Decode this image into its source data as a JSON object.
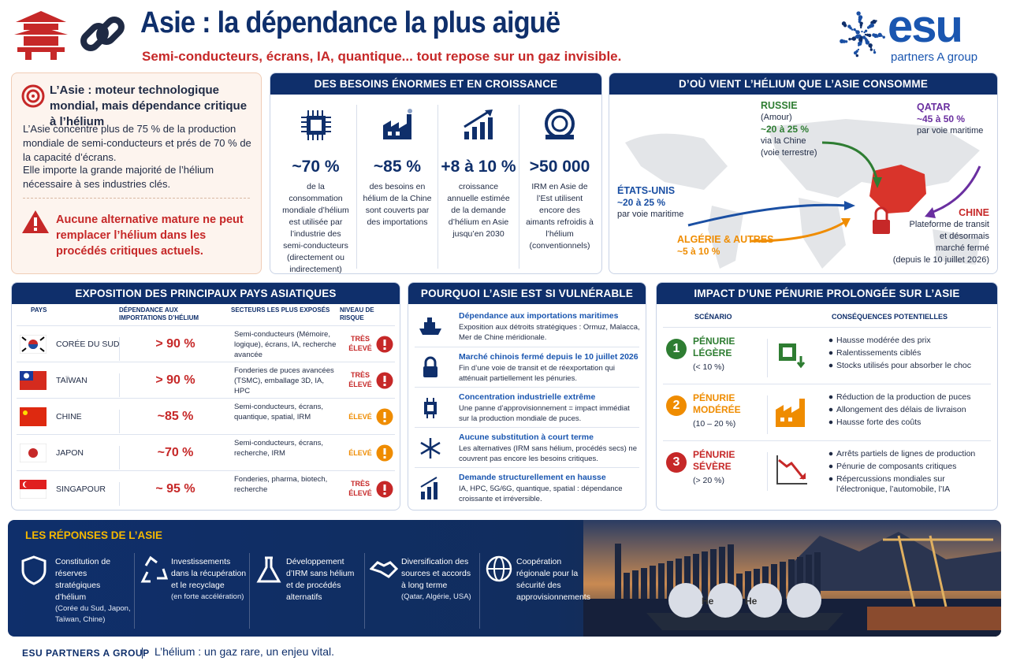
{
  "header": {
    "title": "Asie : la dépendance la plus aiguë",
    "subtitle": "Semi-conducteurs, écrans, IA, quantique... tout repose sur un gaz invisible.",
    "logo": "esu",
    "logo_tagline": "partners A group"
  },
  "intro": {
    "title": "L’Asie : moteur technologique mondial, mais dépendance critique à l’hélium",
    "paragraphs": [
      "L’Asie concentre plus de 75 % de la production mondiale de semi-conducteurs et prés de 70 % de la capacité d’écrans.",
      "Elle importe la grande majorité de l’hélium nécessaire à ses industries clés."
    ],
    "warning": "Aucune alternative mature ne peut remplacer l’hélium dans les procédés critiques actuels."
  },
  "needs": {
    "title": "DES BESOINS ÉNORMES ET EN CROISSANCE",
    "items": [
      {
        "figure": "~70 %",
        "text": "de la consommation mondiale d’hélium est utilisée par l’industrie des semi-conducteurs (directement ou indirectement)"
      },
      {
        "figure": "~85 %",
        "text": "des besoins en hélium de la Chine sont couverts par des importations"
      },
      {
        "figure": "+8 à 10 %",
        "text": "croissance annuelle estimée de la demande d’hélium en Asie jusqu’en 2030"
      },
      {
        "figure": ">50 000",
        "text": "IRM en Asie de l’Est utilisent encore des aimants refroidis à l’hélium (conventionnels)"
      }
    ]
  },
  "sources": {
    "title": "D’OÙ VIENT L’HÉLIUM QUE L’ASIE CONSOMME",
    "items": [
      {
        "name": "RUSSIE",
        "lines": [
          "(Amour)",
          "~20 à 25 %",
          "via la Chine",
          "(voie terrestre)"
        ]
      },
      {
        "name": "QATAR",
        "lines": [
          "~45 à 50 %",
          "par voie maritime"
        ]
      },
      {
        "name": "ÉTATS-UNIS",
        "lines": [
          "~20 à 25 %",
          "par voie maritime"
        ]
      },
      {
        "name": "ALGÉRIE & AUTRES",
        "lines": [
          "~5 à 10 %"
        ]
      },
      {
        "name": "CHINE",
        "lines": [
          "Plateforme de transit",
          "et désormais",
          "marché fermé",
          "(depuis le 10 juillet 2026)"
        ]
      }
    ]
  },
  "exposure": {
    "title": "EXPOSITION DES PRINCIPAUX PAYS ASIATIQUES",
    "headers": [
      "PAYS",
      "DÉPENDANCE AUX IMPORTATIONS D’HÉLIUM",
      "SECTEURS LES PLUS EXPOSÉS",
      "NIVEAU DE RISQUE"
    ],
    "rows": [
      {
        "country": "CORÉE DU SUD",
        "dependence": "> 90 %",
        "sectors": "Semi-conducteurs (Mémoire, logique), écrans, IA, recherche avancée",
        "risk": "TRÈS ÉLEVÉ",
        "color": "#c62828"
      },
      {
        "country": "TAÏWAN",
        "dependence": "> 90 %",
        "sectors": "Fonderies de puces avancées (TSMC), emballage 3D, IA, HPC",
        "risk": "TRÈS ÉLEVÉ",
        "color": "#c62828"
      },
      {
        "country": "CHINE",
        "dependence": "~85 %",
        "sectors": "Semi-conducteurs, écrans, quantique, spatial, IRM",
        "risk": "ÉLEVÉ",
        "color": "#ef8c00"
      },
      {
        "country": "JAPON",
        "dependence": "~70 %",
        "sectors": "Semi-conducteurs, écrans, recherche, IRM",
        "risk": "ÉLEVÉ",
        "color": "#ef8c00"
      },
      {
        "country": "SINGAPOUR",
        "dependence": "~ 95 %",
        "sectors": "Fonderies, pharma, biotech, recherche",
        "risk": "TRÈS ÉLEVÉ",
        "color": "#c62828"
      }
    ]
  },
  "vulnerable": {
    "title": "POURQUOI L’ASIE EST SI VULNÉRABLE",
    "items": [
      {
        "title": "Dépendance aux importations maritimes",
        "text": "Exposition aux détroits stratégiques : Ormuz, Malacca, Mer de Chine méridionale."
      },
      {
        "title": "Marché chinois fermé depuis le 10 juillet 2026",
        "text": "Fin d’une voie de transit et de réexportation qui atténuait partiellement les pénuries."
      },
      {
        "title": "Concentration industrielle extrême",
        "text": "Une panne d’approvisionnement = impact immédiat sur la production mondiale de puces."
      },
      {
        "title": "Aucune substitution à court terme",
        "text": "Les alternatives (IRM sans hélium, procédés secs) ne couvrent pas encore les besoins critiques."
      },
      {
        "title": "Demande structurellement en hausse",
        "text": "IA, HPC, 5G/6G, quantique, spatial : dépendance croissante et irréversible."
      }
    ]
  },
  "impact": {
    "title": "IMPACT D’UNE PÉNURIE PROLONGÉE SUR L’ASIE",
    "headers": [
      "SCÉNARIO",
      "CONSÉQUENCES POTENTIELLES"
    ],
    "rows": [
      {
        "number": "1",
        "level": "PÉNURIE LÉGÈRE",
        "range": "(< 10 %)",
        "color": "#2e7d32",
        "consequences": [
          "Hausse modérée des prix",
          "Ralentissements ciblés",
          "Stocks utilisés pour absorber le choc"
        ]
      },
      {
        "number": "2",
        "level": "PÉNURIE MODÉRÉE",
        "range": "(10 – 20 %)",
        "color": "#ef8c00",
        "consequences": [
          "Réduction de la production de puces",
          "Allongement des délais de livraison",
          "Hausse forte des coûts"
        ]
      },
      {
        "number": "3",
        "level": "PÉNURIE SÉVÈRE",
        "range": "(> 20 %)",
        "color": "#c62828",
        "consequences": [
          "Arrêts partiels de lignes de production",
          "Pénurie de composants critiques",
          "Répercussions mondiales sur l’électronique, l’automobile, l’IA"
        ]
      }
    ]
  },
  "responses": {
    "title": "LES RÉPONSES DE L’ASIE",
    "items": [
      {
        "text": "Constitution de réserves stratégiques d’hélium",
        "note": "(Corée du Sud, Japon, Taïwan, Chine)"
      },
      {
        "text": "Investissements dans la récupération et le recyclage",
        "note": "(en forte accélération)"
      },
      {
        "text": "Développement d’IRM sans hélium et de procédés alternatifs",
        "note": null
      },
      {
        "text": "Diversification des sources et accords à long terme",
        "note": "(Qatar, Algérie, USA)"
      },
      {
        "text": "Coopération régionale pour la sécurité des approvisionnements",
        "note": null
      }
    ],
    "tank_labels": [
      "He",
      "He"
    ]
  },
  "footer": {
    "brand": "ESU PARTNERS A GROUP",
    "tagline": "L’hélium : un gaz rare, un enjeu vital."
  }
}
